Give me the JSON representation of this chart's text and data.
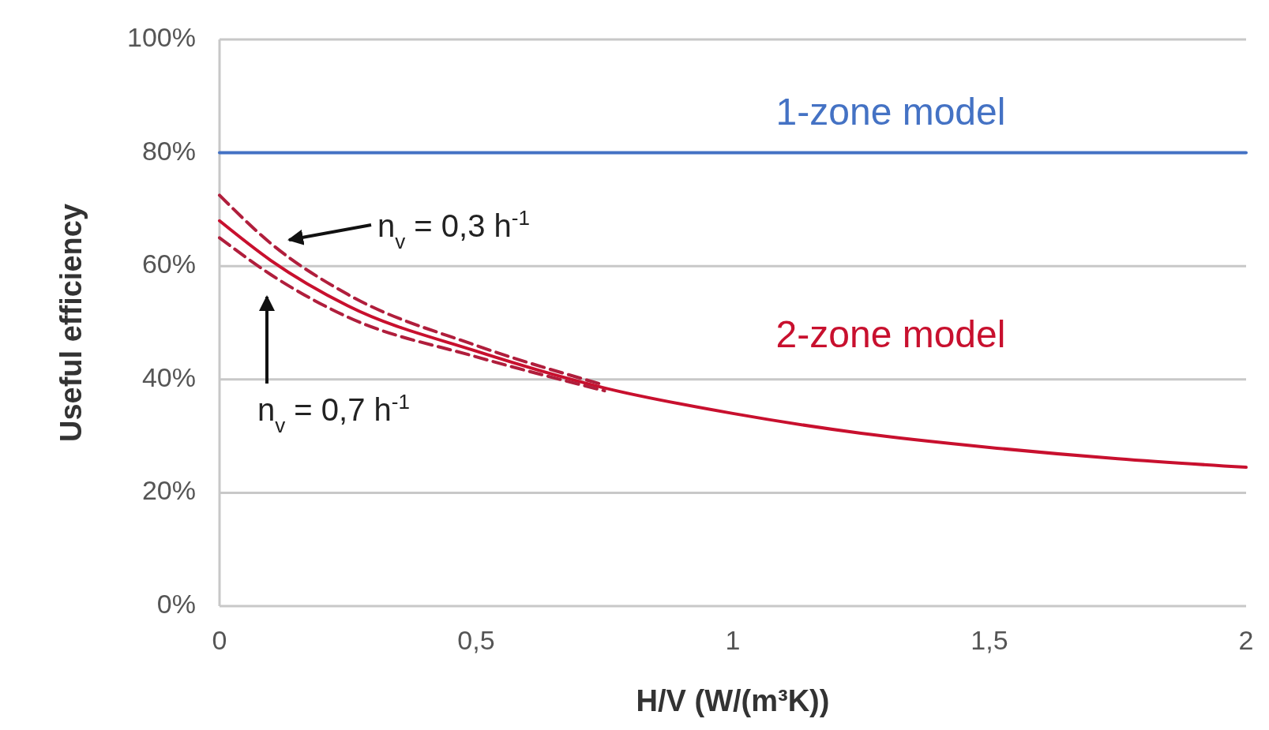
{
  "chart_data": {
    "type": "line",
    "xlabel": "H/V (W/(m³K))",
    "ylabel": "Useful efficiency",
    "xlim": [
      0,
      2
    ],
    "xticks": [
      0,
      {
        "value": 0.5,
        "label": "0,5"
      },
      1,
      {
        "value": 1.5,
        "label": "1,5"
      },
      2
    ],
    "ylim": [
      0,
      100
    ],
    "yticks": [
      {
        "value": 0,
        "label": "0%"
      },
      {
        "value": 20,
        "label": "20%"
      },
      {
        "value": 40,
        "label": "40%"
      },
      {
        "value": 60,
        "label": "60%"
      },
      {
        "value": 80,
        "label": "80%"
      },
      {
        "value": 100,
        "label": "100%"
      }
    ],
    "grid": "y",
    "x": [
      0,
      0.1,
      0.25,
      0.5,
      0.75,
      1,
      1.25,
      1.5,
      1.75,
      2
    ],
    "series": [
      {
        "name": "1-zone model",
        "color": "#4472c4",
        "x": [
          0,
          2
        ],
        "values": [
          80,
          80
        ]
      },
      {
        "name": "2-zone model",
        "color": "#c8102e",
        "values": [
          68,
          61,
          53,
          45,
          38.5,
          34,
          30.5,
          28,
          26,
          24.5
        ]
      },
      {
        "name": "n$_{v}$ = 0,3 h$^{-1}$",
        "color": "#b01e3c",
        "line_style": "dashed",
        "x": [
          0,
          0.1,
          0.25,
          0.5,
          0.75
        ],
        "values": [
          72.5,
          64,
          55,
          46,
          39
        ]
      },
      {
        "name": "n$_{v}$ = 0,7 h$^{-1}$",
        "color": "#b01e3c",
        "line_style": "dashed",
        "x": [
          0,
          0.1,
          0.25,
          0.5,
          0.75
        ],
        "values": [
          65,
          58.5,
          51,
          44,
          38
        ]
      }
    ]
  }
}
